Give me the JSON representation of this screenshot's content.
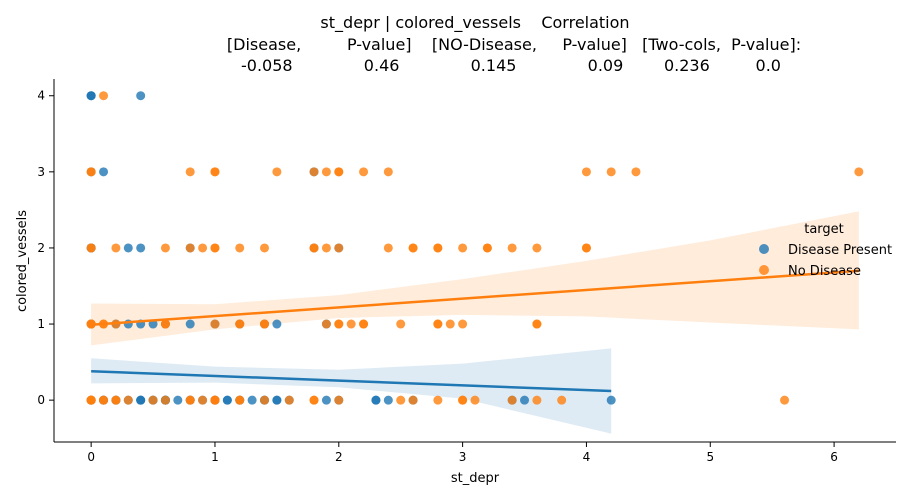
{
  "chart_data": {
    "type": "scatter",
    "title_lines": [
      "st_depr | colored_vessels    Correlation",
      "[Disease,         P-value]    [NO-Disease,     P-value]   [Two-cols,  P-value]:",
      "-0.058              0.46              0.145              0.09        0.236         0.0"
    ],
    "xlabel": "st_depr",
    "ylabel": "colored_vessels",
    "xlim": [
      -0.3,
      6.5
    ],
    "ylim": [
      -0.55,
      4.22
    ],
    "xticks": [
      0,
      1,
      2,
      3,
      4,
      5,
      6
    ],
    "yticks": [
      0,
      1,
      2,
      3,
      4
    ],
    "grid": false,
    "legend": {
      "title": "target",
      "placement": "right",
      "entries": [
        "Disease Present",
        "No Disease"
      ]
    },
    "series": [
      {
        "name": "Disease Present",
        "color": "#1f77b4",
        "regression": {
          "x": [
            0,
            4.2
          ],
          "y": [
            0.38,
            0.12
          ]
        },
        "band": {
          "x": [
            0,
            1,
            2,
            3,
            4.2
          ],
          "low": [
            0.22,
            0.23,
            0.17,
            0.02,
            -0.44
          ],
          "high": [
            0.55,
            0.44,
            0.4,
            0.48,
            0.68
          ]
        },
        "points": [
          [
            0,
            4
          ],
          [
            0,
            4
          ],
          [
            0,
            4
          ],
          [
            0.4,
            4
          ],
          [
            0,
            3
          ],
          [
            0.1,
            3
          ],
          [
            1.8,
            3
          ],
          [
            0,
            2
          ],
          [
            0,
            2
          ],
          [
            0,
            2
          ],
          [
            0.3,
            2
          ],
          [
            0.4,
            2
          ],
          [
            0.8,
            2
          ],
          [
            1.8,
            2
          ],
          [
            2,
            2
          ],
          [
            0,
            1
          ],
          [
            0,
            1
          ],
          [
            0.2,
            1
          ],
          [
            0.3,
            1
          ],
          [
            0.4,
            1
          ],
          [
            0.5,
            1
          ],
          [
            0.6,
            1
          ],
          [
            0.8,
            1
          ],
          [
            1,
            1
          ],
          [
            1.2,
            1
          ],
          [
            1.4,
            1
          ],
          [
            1.5,
            1
          ],
          [
            1.9,
            1
          ],
          [
            0,
            0
          ],
          [
            0,
            0
          ],
          [
            0,
            0
          ],
          [
            0.1,
            0
          ],
          [
            0.1,
            0
          ],
          [
            0.2,
            0
          ],
          [
            0.2,
            0
          ],
          [
            0.3,
            0
          ],
          [
            0.4,
            0
          ],
          [
            0.4,
            0
          ],
          [
            0.4,
            0
          ],
          [
            0.5,
            0
          ],
          [
            0.5,
            0
          ],
          [
            0.6,
            0
          ],
          [
            0.6,
            0
          ],
          [
            0.6,
            0
          ],
          [
            0.6,
            0
          ],
          [
            0.7,
            0
          ],
          [
            0.8,
            0
          ],
          [
            0.8,
            0
          ],
          [
            0.9,
            0
          ],
          [
            1,
            0
          ],
          [
            1,
            0
          ],
          [
            1.1,
            0
          ],
          [
            1.1,
            0
          ],
          [
            1.2,
            0
          ],
          [
            1.2,
            0
          ],
          [
            1.3,
            0
          ],
          [
            1.4,
            0
          ],
          [
            1.4,
            0
          ],
          [
            1.5,
            0
          ],
          [
            1.5,
            0
          ],
          [
            1.6,
            0
          ],
          [
            1.9,
            0
          ],
          [
            2,
            0
          ],
          [
            2.3,
            0
          ],
          [
            2.3,
            0
          ],
          [
            2.4,
            0
          ],
          [
            2.6,
            0
          ],
          [
            3.4,
            0
          ],
          [
            3.5,
            0
          ],
          [
            4.2,
            0
          ]
        ]
      },
      {
        "name": "No Disease",
        "color": "#ff7f0e",
        "regression": {
          "x": [
            0,
            6.2
          ],
          "y": [
            0.99,
            1.7
          ]
        },
        "band": {
          "x": [
            0,
            1,
            2,
            3,
            4,
            5,
            6.2
          ],
          "low": [
            0.72,
            0.93,
            1.08,
            1.12,
            1.1,
            1.02,
            0.93
          ],
          "high": [
            1.27,
            1.26,
            1.38,
            1.59,
            1.83,
            2.1,
            2.48
          ]
        },
        "points": [
          [
            0.1,
            4
          ],
          [
            0,
            3
          ],
          [
            0,
            3
          ],
          [
            0.8,
            3
          ],
          [
            1,
            3
          ],
          [
            1,
            3
          ],
          [
            1.5,
            3
          ],
          [
            1.8,
            3
          ],
          [
            1.9,
            3
          ],
          [
            2,
            3
          ],
          [
            2,
            3
          ],
          [
            2.2,
            3
          ],
          [
            2.4,
            3
          ],
          [
            4,
            3
          ],
          [
            4.2,
            3
          ],
          [
            4.4,
            3
          ],
          [
            6.2,
            3
          ],
          [
            0,
            2
          ],
          [
            0,
            2
          ],
          [
            0.2,
            2
          ],
          [
            0.6,
            2
          ],
          [
            0.8,
            2
          ],
          [
            0.9,
            2
          ],
          [
            1,
            2
          ],
          [
            1,
            2
          ],
          [
            1.2,
            2
          ],
          [
            1.4,
            2
          ],
          [
            1.8,
            2
          ],
          [
            1.8,
            2
          ],
          [
            1.9,
            2
          ],
          [
            2,
            2
          ],
          [
            2.4,
            2
          ],
          [
            2.6,
            2
          ],
          [
            2.6,
            2
          ],
          [
            2.8,
            2
          ],
          [
            2.8,
            2
          ],
          [
            3,
            2
          ],
          [
            3.2,
            2
          ],
          [
            3.2,
            2
          ],
          [
            3.4,
            2
          ],
          [
            3.6,
            2
          ],
          [
            4,
            2
          ],
          [
            4,
            2
          ],
          [
            0,
            1
          ],
          [
            0,
            1
          ],
          [
            0,
            1
          ],
          [
            0,
            1
          ],
          [
            0.1,
            1
          ],
          [
            0.1,
            1
          ],
          [
            0.2,
            1
          ],
          [
            0.6,
            1
          ],
          [
            0.6,
            1
          ],
          [
            1,
            1
          ],
          [
            1.2,
            1
          ],
          [
            1.2,
            1
          ],
          [
            1.4,
            1
          ],
          [
            1.4,
            1
          ],
          [
            1.9,
            1
          ],
          [
            2,
            1
          ],
          [
            2,
            1
          ],
          [
            2.1,
            1
          ],
          [
            2.2,
            1
          ],
          [
            2.2,
            1
          ],
          [
            2.5,
            1
          ],
          [
            2.8,
            1
          ],
          [
            2.8,
            1
          ],
          [
            2.9,
            1
          ],
          [
            3,
            1
          ],
          [
            3.6,
            1
          ],
          [
            3.6,
            1
          ],
          [
            0,
            0
          ],
          [
            0,
            0
          ],
          [
            0,
            0
          ],
          [
            0,
            0
          ],
          [
            0,
            0
          ],
          [
            0.1,
            0
          ],
          [
            0.1,
            0
          ],
          [
            0.2,
            0
          ],
          [
            0.2,
            0
          ],
          [
            0.3,
            0
          ],
          [
            0.5,
            0
          ],
          [
            0.6,
            0
          ],
          [
            0.8,
            0
          ],
          [
            0.8,
            0
          ],
          [
            0.9,
            0
          ],
          [
            1,
            0
          ],
          [
            1,
            0
          ],
          [
            1,
            0
          ],
          [
            1.2,
            0
          ],
          [
            1.2,
            0
          ],
          [
            1.4,
            0
          ],
          [
            1.6,
            0
          ],
          [
            1.8,
            0
          ],
          [
            1.8,
            0
          ],
          [
            2,
            0
          ],
          [
            2.5,
            0
          ],
          [
            2.6,
            0
          ],
          [
            2.8,
            0
          ],
          [
            3,
            0
          ],
          [
            3,
            0
          ],
          [
            3.1,
            0
          ],
          [
            3.4,
            0
          ],
          [
            3.6,
            0
          ],
          [
            3.8,
            0
          ],
          [
            5.6,
            0
          ]
        ]
      }
    ]
  }
}
